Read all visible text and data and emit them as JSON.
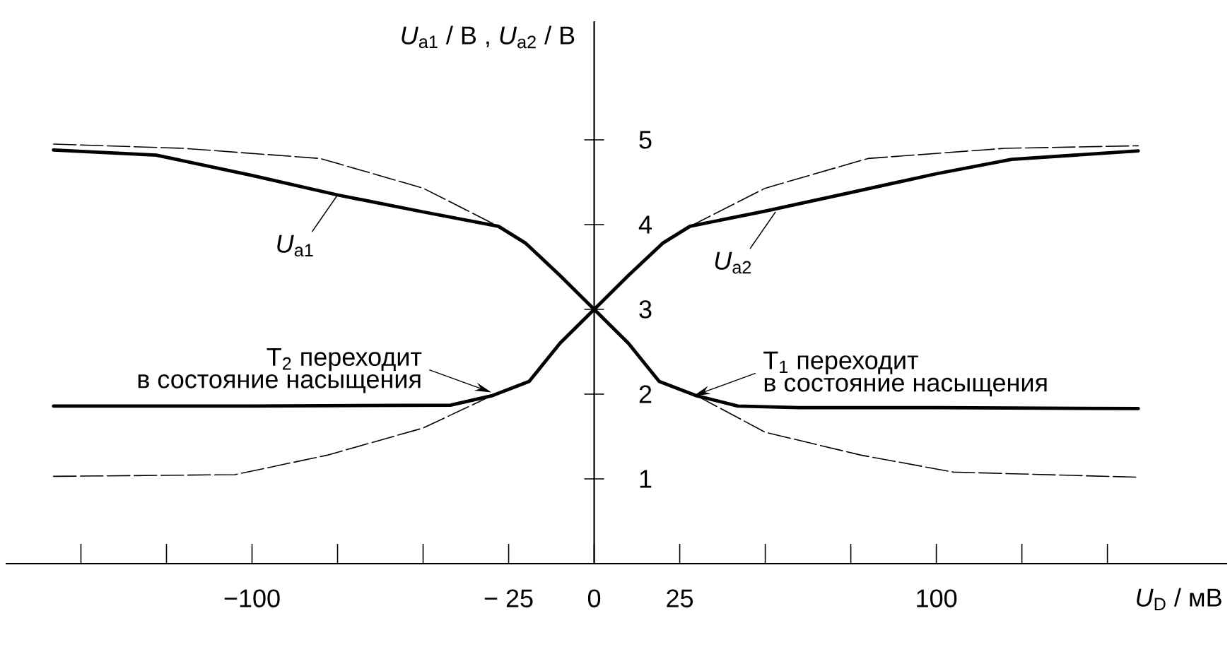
{
  "chart_data": {
    "type": "line",
    "xlabel": "*U*$_{D}$ / мВ",
    "ylabel": "*U*$_{a1}$ / В ,  *U*$_{a2}$ / В",
    "xlim": [
      -172,
      185
    ],
    "ylim": [
      0,
      6.4
    ],
    "xticks": [
      {
        "value": -150,
        "label": null
      },
      {
        "value": -125,
        "label": null
      },
      {
        "value": -100,
        "label": "−100"
      },
      {
        "value": -75,
        "label": null
      },
      {
        "value": -50,
        "label": null
      },
      {
        "value": -25,
        "label": "− 25"
      },
      {
        "value": 0,
        "label": "0"
      },
      {
        "value": 25,
        "label": "25"
      },
      {
        "value": 50,
        "label": null
      },
      {
        "value": 75,
        "label": null
      },
      {
        "value": 100,
        "label": "100"
      },
      {
        "value": 125,
        "label": null
      },
      {
        "value": 150,
        "label": null
      }
    ],
    "yticks": [
      1,
      2,
      3,
      4,
      5
    ],
    "grid": false,
    "series": [
      {
        "color": "#000000",
        "line_style": "solid",
        "x": [
          -158,
          -128,
          -100,
          -75,
          -50,
          -28,
          -20,
          -10,
          0,
          10,
          19,
          30,
          42,
          60,
          100,
          159
        ],
        "values": [
          4.88,
          4.82,
          4.58,
          4.35,
          4.15,
          3.98,
          3.78,
          3.4,
          3.0,
          2.6,
          2.15,
          1.98,
          1.86,
          1.84,
          1.84,
          1.83
        ]
      },
      {
        "color": "#000000",
        "line_style": "solid",
        "x": [
          -158,
          -100,
          -42,
          -30,
          -19,
          -10,
          0,
          10,
          20,
          28,
          50,
          74,
          100,
          122,
          159
        ],
        "values": [
          1.86,
          1.86,
          1.87,
          1.98,
          2.15,
          2.6,
          3.0,
          3.4,
          3.78,
          3.98,
          4.16,
          4.37,
          4.6,
          4.77,
          4.87
        ]
      },
      {
        "color": "#000000",
        "line_style": "dashed",
        "x": [
          -158,
          -120,
          -80,
          -50,
          -28,
          0,
          28,
          50,
          80,
          120,
          159
        ],
        "values": [
          4.95,
          4.9,
          4.78,
          4.43,
          3.98,
          null,
          3.98,
          4.43,
          4.78,
          4.9,
          4.93
        ]
      },
      {
        "color": "#000000",
        "line_style": "dashed",
        "x": [
          -158,
          -105,
          -78,
          -50,
          -30,
          0,
          30,
          50,
          78,
          105,
          159
        ],
        "values": [
          1.03,
          1.05,
          1.28,
          1.6,
          1.98,
          null,
          1.98,
          1.55,
          1.28,
          1.08,
          1.02
        ]
      }
    ],
    "annotations": [
      {
        "text": "*U*$_{a1}$",
        "x": -75,
        "y": 4.35
      },
      {
        "text": "*U*$_{a2}$",
        "x": 53,
        "y": 4.15
      },
      {
        "text": "T$_{2}$ переходит",
        "x": -30,
        "y": 2.02
      },
      "в состояние насыщения",
      {
        "text": "T$_{1}$ переходит",
        "x": 29,
        "y": 1.98
      },
      "в состояние насыщения"
    ]
  }
}
